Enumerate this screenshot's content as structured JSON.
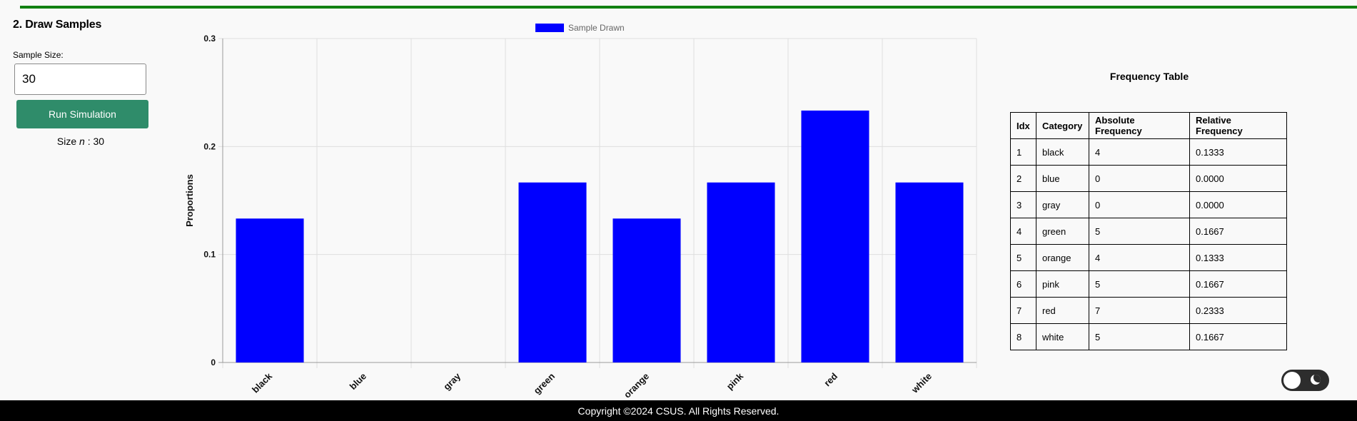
{
  "section": {
    "title": "2. Draw Samples"
  },
  "controls": {
    "sample_size_label": "Sample Size:",
    "sample_size_value": "30",
    "run_label": "Run Simulation",
    "size_prefix": "Size ",
    "size_var": "n",
    "size_suffix": " : 30"
  },
  "chart_data": {
    "type": "bar",
    "title": "",
    "xlabel": "",
    "ylabel": "Proportions",
    "legend": {
      "position": "top-center",
      "entries": [
        "Sample Drawn"
      ]
    },
    "categories": [
      "black",
      "blue",
      "gray",
      "green",
      "orange",
      "pink",
      "red",
      "white"
    ],
    "series": [
      {
        "name": "Sample Drawn",
        "color": "#0000ff",
        "values": [
          0.1333,
          0.0,
          0.0,
          0.1667,
          0.1333,
          0.1667,
          0.2333,
          0.1667
        ]
      }
    ],
    "ylim": [
      0,
      0.3
    ],
    "yticks": [
      0,
      0.1,
      0.2,
      0.3
    ],
    "ytick_labels": [
      "0",
      "0.1",
      "0.2",
      "0.3"
    ],
    "grid": true
  },
  "frequency_table": {
    "title": "Frequency Table",
    "headers": [
      "Idx",
      "Category",
      "Absolute Frequency",
      "Relative Frequency"
    ],
    "rows": [
      [
        "1",
        "black",
        "4",
        "0.1333"
      ],
      [
        "2",
        "blue",
        "0",
        "0.0000"
      ],
      [
        "3",
        "gray",
        "0",
        "0.0000"
      ],
      [
        "4",
        "green",
        "5",
        "0.1667"
      ],
      [
        "5",
        "orange",
        "4",
        "0.1333"
      ],
      [
        "6",
        "pink",
        "5",
        "0.1667"
      ],
      [
        "7",
        "red",
        "7",
        "0.2333"
      ],
      [
        "8",
        "white",
        "5",
        "0.1667"
      ]
    ]
  },
  "theme_toggle": {
    "icon": "moon-icon",
    "state": "light"
  },
  "footer": {
    "text": "Copyright ©2024 CSUS. All Rights Reserved."
  },
  "colors": {
    "accent_rule": "#118011",
    "button": "#2f8c6a",
    "bar": "#0000ff",
    "footer_bg": "#000000"
  }
}
